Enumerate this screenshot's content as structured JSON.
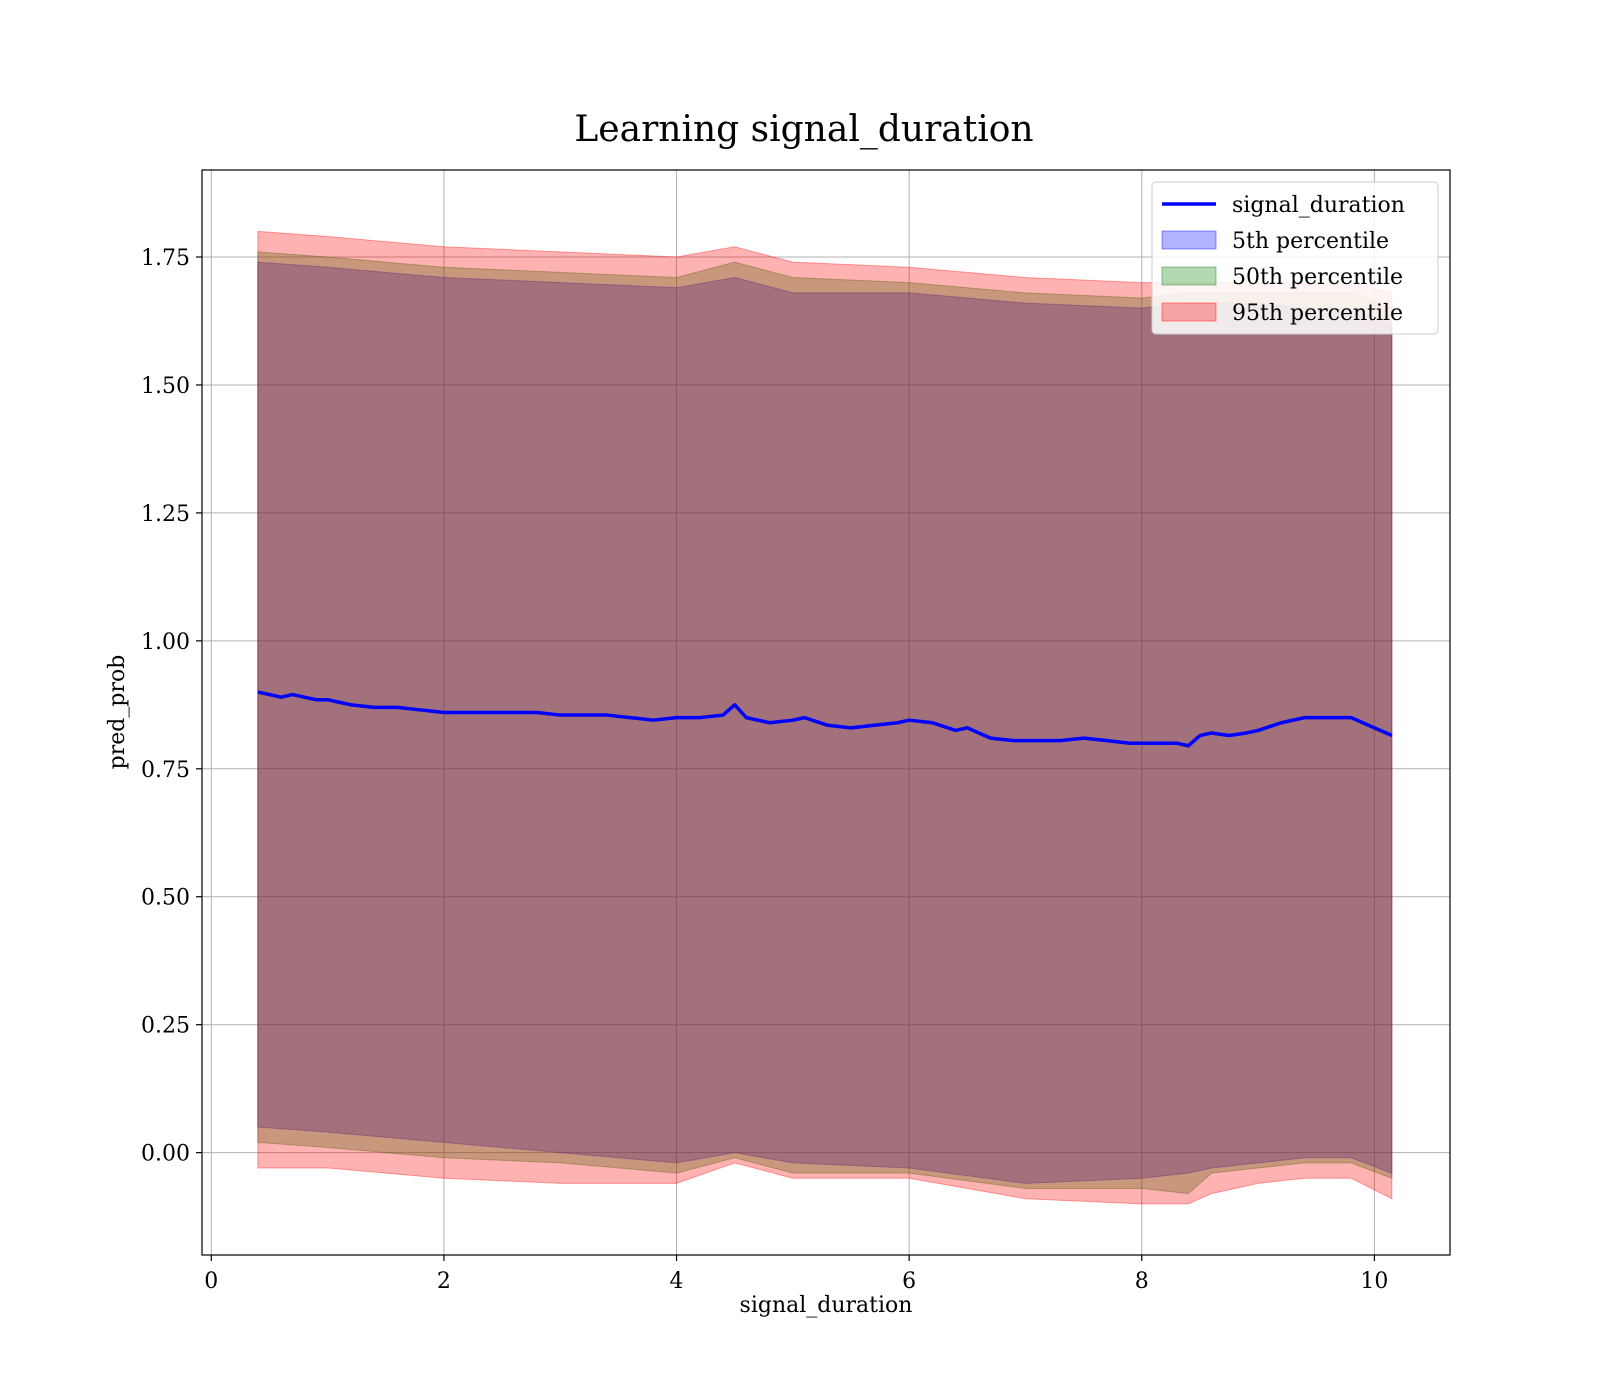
{
  "chart_data": {
    "type": "line",
    "title": "Learning signal_duration",
    "xlabel": "signal_duration",
    "ylabel": "pred_prob",
    "xlim": [
      -0.08,
      10.65
    ],
    "ylim": [
      -0.2,
      1.92
    ],
    "xticks": [
      0,
      2,
      4,
      6,
      8,
      10
    ],
    "xtick_labels": [
      "0",
      "2",
      "4",
      "6",
      "8",
      "10"
    ],
    "yticks": [
      0.0,
      0.25,
      0.5,
      0.75,
      1.0,
      1.25,
      1.5,
      1.75
    ],
    "ytick_labels": [
      "0.00",
      "0.25",
      "0.50",
      "0.75",
      "1.00",
      "1.25",
      "1.50",
      "1.75"
    ],
    "grid": true,
    "legend_position": "top-right",
    "colors": {
      "line": "#0000ff",
      "p5": "#0000ff",
      "p50": "#008000",
      "p95": "#ff0000",
      "band_alpha": 0.3
    },
    "series": [
      {
        "name": "signal_duration",
        "kind": "line",
        "x": [
          0.4,
          0.5,
          0.6,
          0.7,
          0.8,
          0.9,
          1.0,
          1.1,
          1.2,
          1.4,
          1.6,
          1.8,
          2.0,
          2.2,
          2.4,
          2.6,
          2.8,
          3.0,
          3.2,
          3.4,
          3.6,
          3.8,
          4.0,
          4.2,
          4.4,
          4.5,
          4.6,
          4.8,
          5.0,
          5.1,
          5.3,
          5.5,
          5.7,
          5.9,
          6.0,
          6.2,
          6.4,
          6.5,
          6.7,
          6.9,
          7.1,
          7.3,
          7.5,
          7.7,
          7.9,
          8.1,
          8.3,
          8.4,
          8.5,
          8.6,
          8.75,
          8.9,
          9.0,
          9.2,
          9.4,
          9.6,
          9.8,
          10.15
        ],
        "y": [
          0.9,
          0.895,
          0.89,
          0.895,
          0.89,
          0.885,
          0.885,
          0.88,
          0.875,
          0.87,
          0.87,
          0.865,
          0.86,
          0.86,
          0.86,
          0.86,
          0.86,
          0.855,
          0.855,
          0.855,
          0.85,
          0.845,
          0.85,
          0.85,
          0.855,
          0.875,
          0.85,
          0.84,
          0.845,
          0.85,
          0.835,
          0.83,
          0.835,
          0.84,
          0.845,
          0.84,
          0.825,
          0.83,
          0.81,
          0.805,
          0.805,
          0.805,
          0.81,
          0.805,
          0.8,
          0.8,
          0.8,
          0.795,
          0.815,
          0.82,
          0.815,
          0.82,
          0.825,
          0.84,
          0.85,
          0.85,
          0.85,
          0.815
        ]
      },
      {
        "name": "5th percentile",
        "kind": "band",
        "x": [
          0.4,
          1.0,
          2.0,
          3.0,
          4.0,
          4.5,
          5.0,
          6.0,
          7.0,
          8.0,
          8.4,
          8.6,
          9.0,
          9.4,
          9.8,
          10.15
        ],
        "lower": [
          0.05,
          0.04,
          0.02,
          0.0,
          -0.02,
          0.0,
          -0.02,
          -0.03,
          -0.06,
          -0.05,
          -0.04,
          -0.03,
          -0.02,
          -0.01,
          -0.01,
          -0.04
        ],
        "upper": [
          1.74,
          1.73,
          1.71,
          1.7,
          1.69,
          1.71,
          1.68,
          1.68,
          1.66,
          1.65,
          1.66,
          1.66,
          1.66,
          1.65,
          1.65,
          1.62
        ]
      },
      {
        "name": "50th percentile",
        "kind": "band",
        "x": [
          0.4,
          1.0,
          2.0,
          3.0,
          4.0,
          4.5,
          5.0,
          6.0,
          7.0,
          8.0,
          8.4,
          8.6,
          9.0,
          9.4,
          9.8,
          10.15
        ],
        "lower": [
          0.02,
          0.01,
          -0.01,
          -0.02,
          -0.04,
          -0.01,
          -0.04,
          -0.04,
          -0.07,
          -0.07,
          -0.08,
          -0.04,
          -0.03,
          -0.02,
          -0.02,
          -0.05
        ],
        "upper": [
          1.76,
          1.75,
          1.73,
          1.72,
          1.71,
          1.74,
          1.71,
          1.7,
          1.68,
          1.67,
          1.68,
          1.68,
          1.68,
          1.68,
          1.68,
          1.65
        ]
      },
      {
        "name": "95th percentile",
        "kind": "band",
        "x": [
          0.4,
          1.0,
          2.0,
          3.0,
          4.0,
          4.5,
          5.0,
          6.0,
          7.0,
          8.0,
          8.4,
          8.6,
          9.0,
          9.4,
          9.8,
          10.15
        ],
        "lower": [
          -0.03,
          -0.03,
          -0.05,
          -0.06,
          -0.06,
          -0.02,
          -0.05,
          -0.05,
          -0.09,
          -0.1,
          -0.1,
          -0.08,
          -0.06,
          -0.05,
          -0.05,
          -0.09
        ],
        "upper": [
          1.8,
          1.79,
          1.77,
          1.76,
          1.75,
          1.77,
          1.74,
          1.73,
          1.71,
          1.7,
          1.7,
          1.7,
          1.7,
          1.7,
          1.7,
          1.68
        ]
      }
    ]
  }
}
